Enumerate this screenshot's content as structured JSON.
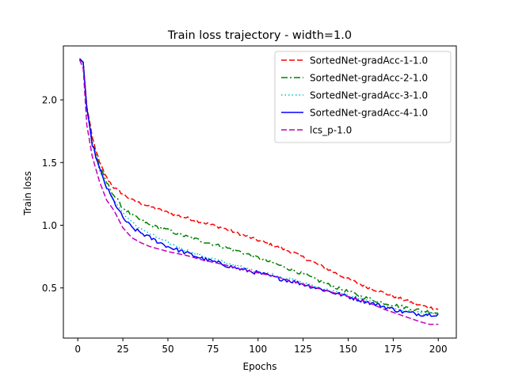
{
  "chart_data": {
    "type": "line",
    "title": "Train loss trajectory - width=1.0",
    "xlabel": "Epochs",
    "ylabel": "Train loss",
    "xlim": [
      -8,
      210
    ],
    "ylim": [
      0.1,
      2.43
    ],
    "xticks": [
      0,
      25,
      50,
      75,
      100,
      125,
      150,
      175,
      200
    ],
    "yticks": [
      0.5,
      1.0,
      1.5,
      2.0
    ],
    "xtick_labels": [
      "0",
      "25",
      "50",
      "75",
      "100",
      "125",
      "150",
      "175",
      "200"
    ],
    "ytick_labels": [
      "0.5",
      "1.0",
      "1.5",
      "2.0"
    ],
    "grid": false,
    "legend_position": "top-right",
    "series": [
      {
        "name": "SortedNet-gradAcc-1-1.0",
        "color": "#ff0000",
        "linestyle": "dashed",
        "noise": 0.012,
        "x": [
          1,
          3,
          5,
          8,
          12,
          16,
          20,
          25,
          30,
          40,
          50,
          60,
          70,
          80,
          90,
          100,
          110,
          120,
          130,
          140,
          150,
          160,
          170,
          180,
          190,
          200
        ],
        "y": [
          2.32,
          2.3,
          1.95,
          1.7,
          1.5,
          1.38,
          1.3,
          1.25,
          1.2,
          1.15,
          1.1,
          1.06,
          1.02,
          0.98,
          0.93,
          0.88,
          0.83,
          0.78,
          0.71,
          0.64,
          0.57,
          0.51,
          0.46,
          0.41,
          0.36,
          0.33
        ]
      },
      {
        "name": "SortedNet-gradAcc-2-1.0",
        "color": "#008000",
        "linestyle": "dashdot",
        "noise": 0.014,
        "x": [
          1,
          3,
          5,
          8,
          12,
          16,
          20,
          25,
          30,
          40,
          50,
          60,
          70,
          80,
          90,
          100,
          110,
          120,
          130,
          140,
          150,
          160,
          170,
          180,
          190,
          200
        ],
        "y": [
          2.32,
          2.3,
          1.93,
          1.67,
          1.47,
          1.34,
          1.24,
          1.14,
          1.08,
          1.0,
          0.96,
          0.91,
          0.87,
          0.83,
          0.79,
          0.74,
          0.69,
          0.64,
          0.58,
          0.52,
          0.47,
          0.42,
          0.38,
          0.35,
          0.32,
          0.3
        ]
      },
      {
        "name": "SortedNet-gradAcc-3-1.0",
        "color": "#00bfbf",
        "linestyle": "dotted",
        "noise": 0.012,
        "x": [
          1,
          3,
          5,
          8,
          12,
          16,
          20,
          25,
          30,
          40,
          50,
          60,
          70,
          80,
          90,
          100,
          110,
          120,
          130,
          140,
          150,
          160,
          170,
          180,
          190,
          200
        ],
        "y": [
          2.32,
          2.3,
          1.92,
          1.65,
          1.45,
          1.3,
          1.2,
          1.1,
          1.02,
          0.93,
          0.86,
          0.8,
          0.75,
          0.71,
          0.67,
          0.63,
          0.6,
          0.56,
          0.52,
          0.48,
          0.44,
          0.4,
          0.36,
          0.32,
          0.3,
          0.29
        ]
      },
      {
        "name": "SortedNet-gradAcc-4-1.0",
        "color": "#0000ff",
        "linestyle": "solid",
        "noise": 0.016,
        "x": [
          1,
          3,
          5,
          8,
          12,
          16,
          20,
          25,
          30,
          40,
          50,
          60,
          70,
          80,
          90,
          100,
          110,
          120,
          130,
          140,
          150,
          160,
          170,
          180,
          190,
          200
        ],
        "y": [
          2.33,
          2.3,
          1.92,
          1.65,
          1.45,
          1.3,
          1.19,
          1.06,
          0.98,
          0.9,
          0.83,
          0.78,
          0.73,
          0.69,
          0.65,
          0.62,
          0.58,
          0.55,
          0.51,
          0.47,
          0.43,
          0.39,
          0.35,
          0.31,
          0.29,
          0.29
        ]
      },
      {
        "name": "lcs_p-1.0",
        "color": "#bf00bf",
        "linestyle": "dashed",
        "noise": 0.0,
        "x": [
          1,
          3,
          5,
          8,
          12,
          16,
          20,
          25,
          30,
          35,
          40,
          50,
          60,
          70,
          80,
          90,
          100,
          110,
          120,
          130,
          140,
          150,
          160,
          170,
          180,
          190,
          195,
          200
        ],
        "y": [
          2.32,
          2.25,
          1.8,
          1.55,
          1.35,
          1.2,
          1.12,
          0.98,
          0.9,
          0.86,
          0.83,
          0.79,
          0.76,
          0.72,
          0.69,
          0.65,
          0.62,
          0.59,
          0.55,
          0.51,
          0.47,
          0.43,
          0.39,
          0.33,
          0.28,
          0.23,
          0.21,
          0.21
        ]
      }
    ]
  }
}
